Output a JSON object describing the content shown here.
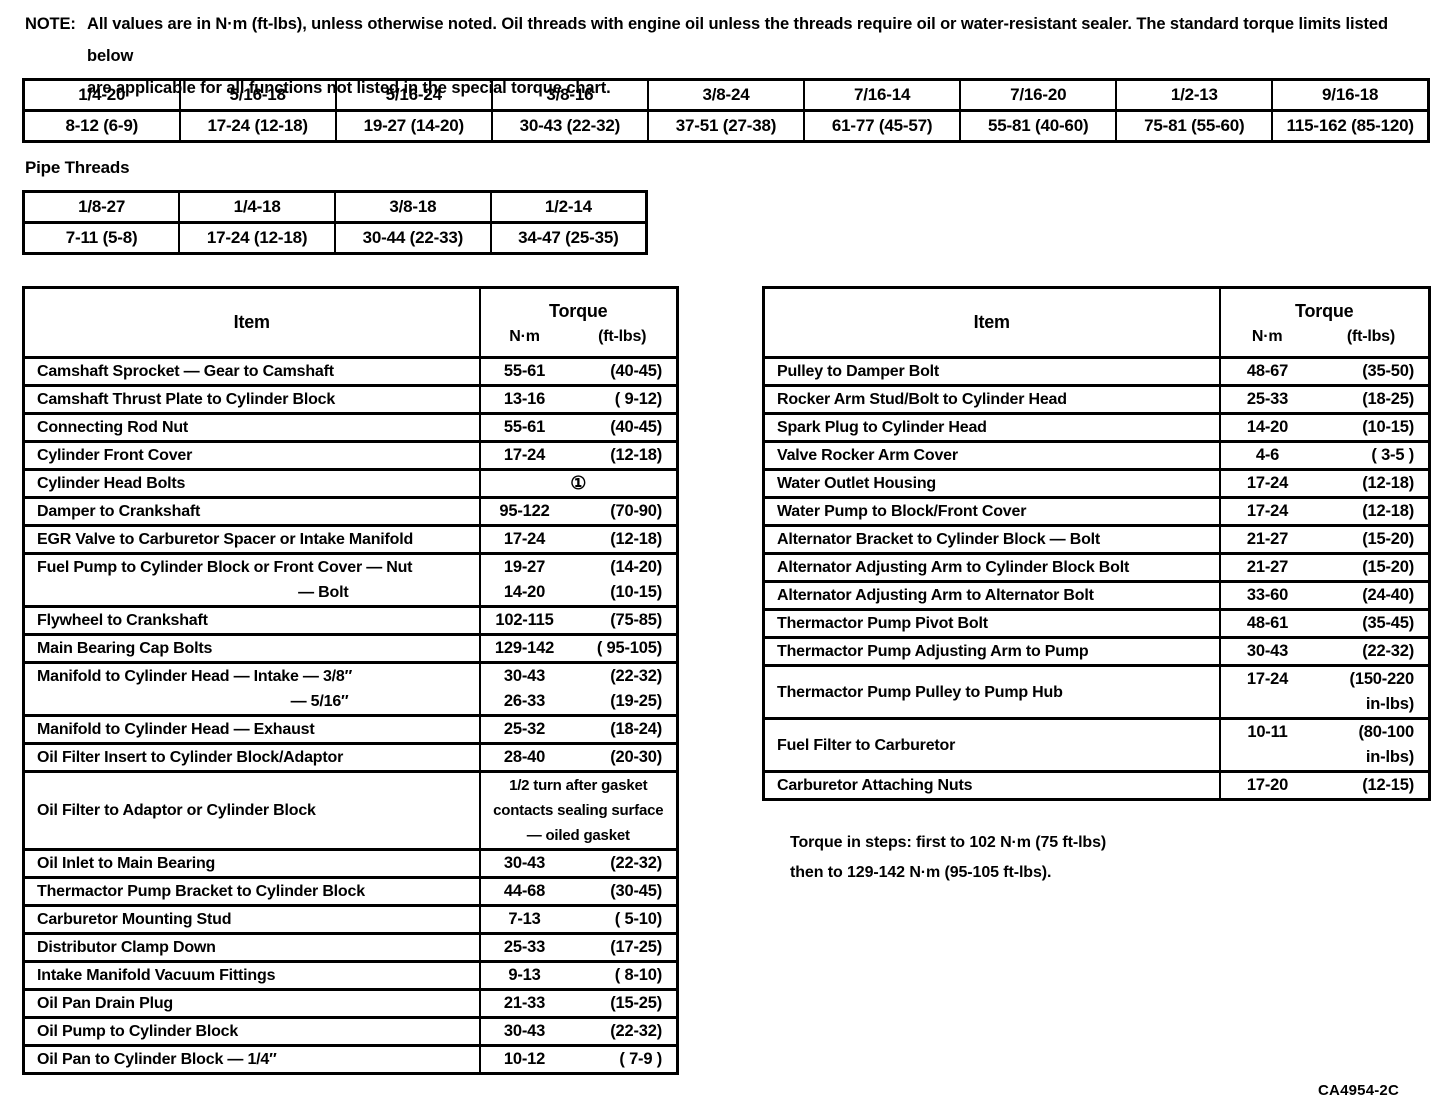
{
  "note": {
    "label": "NOTE:",
    "text_line1": "All values are in N·m (ft-lbs), unless otherwise noted. Oil threads with engine oil unless the threads require oil or water-resistant sealer. The standard torque limits listed below",
    "text_line2": "are applicable for all functions not listed in the special torque chart."
  },
  "standard_table": {
    "threads": [
      "1/4-20",
      "5/16-18",
      "5/16-24",
      "3/8-16",
      "3/8-24",
      "7/16-14",
      "7/16-20",
      "1/2-13",
      "9/16-18"
    ],
    "torques": [
      "8-12 (6-9)",
      "17-24 (12-18)",
      "19-27 (14-20)",
      "30-43 (22-32)",
      "37-51 (27-38)",
      "61-77 (45-57)",
      "55-81 (40-60)",
      "75-81 (55-60)",
      "115-162 (85-120)"
    ]
  },
  "pipe_threads": {
    "title": "Pipe Threads",
    "threads": [
      "1/8-27",
      "1/4-18",
      "3/8-18",
      "1/2-14"
    ],
    "torques": [
      "7-11 (5-8)",
      "17-24 (12-18)",
      "30-44 (22-33)",
      "34-47 (25-35)"
    ]
  },
  "left_table": {
    "item_header": "Item",
    "torque_header": "Torque",
    "nm_header": "N·m",
    "ftlbs_header": "(ft-lbs)",
    "rows": [
      {
        "item": [
          "Camshaft Sprocket — Gear to Camshaft"
        ],
        "nm": [
          "55-61"
        ],
        "ftlbs": [
          "(40-45)"
        ]
      },
      {
        "item": [
          "Camshaft Thrust Plate to Cylinder Block"
        ],
        "nm": [
          "13-16"
        ],
        "ftlbs": [
          "( 9-12)"
        ]
      },
      {
        "item": [
          "Connecting Rod Nut"
        ],
        "nm": [
          "55-61"
        ],
        "ftlbs": [
          "(40-45)"
        ]
      },
      {
        "item": [
          "Cylinder Front Cover"
        ],
        "nm": [
          "17-24"
        ],
        "ftlbs": [
          "(12-18)"
        ]
      },
      {
        "item": [
          "Cylinder Head Bolts"
        ],
        "span": [
          "①"
        ]
      },
      {
        "item": [
          "Damper to Crankshaft"
        ],
        "nm": [
          "95-122"
        ],
        "ftlbs": [
          "(70-90)"
        ]
      },
      {
        "item": [
          "EGR Valve to Carburetor Spacer or Intake Manifold"
        ],
        "nm": [
          "17-24"
        ],
        "ftlbs": [
          "(12-18)"
        ]
      },
      {
        "item": [
          "Fuel Pump to Cylinder Block or Front Cover — Nut",
          "— Bolt"
        ],
        "nm": [
          "19-27",
          "14-20"
        ],
        "ftlbs": [
          "(14-20)",
          "(10-15)"
        ]
      },
      {
        "item": [
          "Flywheel to Crankshaft"
        ],
        "nm": [
          "102-115"
        ],
        "ftlbs": [
          "(75-85)"
        ]
      },
      {
        "item": [
          "Main Bearing Cap Bolts"
        ],
        "nm": [
          "129-142"
        ],
        "ftlbs": [
          "( 95-105)"
        ]
      },
      {
        "item": [
          "Manifold to Cylinder Head — Intake — 3/8″",
          "— 5/16″"
        ],
        "nm": [
          "30-43",
          "26-33"
        ],
        "ftlbs": [
          "(22-32)",
          "(19-25)"
        ]
      },
      {
        "item": [
          "Manifold to Cylinder Head — Exhaust"
        ],
        "nm": [
          "25-32"
        ],
        "ftlbs": [
          "(18-24)"
        ]
      },
      {
        "item": [
          "Oil Filter Insert to Cylinder Block/Adaptor"
        ],
        "nm": [
          "28-40"
        ],
        "ftlbs": [
          "(20-30)"
        ]
      },
      {
        "item": [
          "Oil Filter to Adaptor or Cylinder Block"
        ],
        "span": [
          "1/2 turn after gasket",
          "contacts sealing surface",
          "— oiled gasket"
        ]
      },
      {
        "item": [
          "Oil Inlet to Main Bearing"
        ],
        "nm": [
          "30-43"
        ],
        "ftlbs": [
          "(22-32)"
        ]
      },
      {
        "item": [
          "Thermactor Pump Bracket to Cylinder Block"
        ],
        "nm": [
          "44-68"
        ],
        "ftlbs": [
          "(30-45)"
        ]
      },
      {
        "item": [
          "Carburetor Mounting Stud"
        ],
        "nm": [
          "7-13"
        ],
        "ftlbs": [
          "( 5-10)"
        ]
      },
      {
        "item": [
          "Distributor Clamp Down"
        ],
        "nm": [
          "25-33"
        ],
        "ftlbs": [
          "(17-25)"
        ]
      },
      {
        "item": [
          "Intake Manifold Vacuum Fittings"
        ],
        "nm": [
          "9-13"
        ],
        "ftlbs": [
          "( 8-10)"
        ]
      },
      {
        "item": [
          "Oil Pan Drain Plug"
        ],
        "nm": [
          "21-33"
        ],
        "ftlbs": [
          "(15-25)"
        ]
      },
      {
        "item": [
          "Oil Pump to Cylinder Block"
        ],
        "nm": [
          "30-43"
        ],
        "ftlbs": [
          "(22-32)"
        ]
      },
      {
        "item": [
          "Oil Pan to Cylinder Block — 1/4″"
        ],
        "nm": [
          "10-12"
        ],
        "ftlbs": [
          "( 7-9 )"
        ]
      }
    ]
  },
  "right_table": {
    "item_header": "Item",
    "torque_header": "Torque",
    "nm_header": "N·m",
    "ftlbs_header": "(ft-lbs)",
    "rows": [
      {
        "item": [
          "Pulley to Damper Bolt"
        ],
        "nm": [
          "48-67"
        ],
        "ftlbs": [
          "(35-50)"
        ]
      },
      {
        "item": [
          "Rocker Arm Stud/Bolt to Cylinder Head"
        ],
        "nm": [
          "25-33"
        ],
        "ftlbs": [
          "(18-25)"
        ]
      },
      {
        "item": [
          "Spark Plug to Cylinder Head"
        ],
        "nm": [
          "14-20"
        ],
        "ftlbs": [
          "(10-15)"
        ]
      },
      {
        "item": [
          "Valve Rocker Arm Cover"
        ],
        "nm": [
          "4-6"
        ],
        "ftlbs": [
          "( 3-5 )"
        ]
      },
      {
        "item": [
          "Water Outlet Housing"
        ],
        "nm": [
          "17-24"
        ],
        "ftlbs": [
          "(12-18)"
        ]
      },
      {
        "item": [
          "Water Pump to Block/Front Cover"
        ],
        "nm": [
          "17-24"
        ],
        "ftlbs": [
          "(12-18)"
        ]
      },
      {
        "item": [
          "Alternator Bracket to Cylinder Block — Bolt"
        ],
        "nm": [
          "21-27"
        ],
        "ftlbs": [
          "(15-20)"
        ]
      },
      {
        "item": [
          "Alternator Adjusting Arm to Cylinder Block Bolt"
        ],
        "nm": [
          "21-27"
        ],
        "ftlbs": [
          "(15-20)"
        ]
      },
      {
        "item": [
          "Alternator Adjusting Arm to Alternator Bolt"
        ],
        "nm": [
          "33-60"
        ],
        "ftlbs": [
          "(24-40)"
        ]
      },
      {
        "item": [
          "Thermactor Pump Pivot Bolt"
        ],
        "nm": [
          "48-61"
        ],
        "ftlbs": [
          "(35-45)"
        ]
      },
      {
        "item": [
          "Thermactor Pump Adjusting Arm to Pump"
        ],
        "nm": [
          "30-43"
        ],
        "ftlbs": [
          "(22-32)"
        ]
      },
      {
        "item": [
          "Thermactor Pump Pulley to Pump Hub"
        ],
        "nm": [
          "17-24"
        ],
        "ftlbs": [
          "(150-220",
          "in-lbs)"
        ]
      },
      {
        "item": [
          "Fuel Filter to Carburetor"
        ],
        "nm": [
          "10-11"
        ],
        "ftlbs": [
          "(80-100",
          "in-lbs)"
        ]
      },
      {
        "item": [
          "Carburetor Attaching Nuts"
        ],
        "nm": [
          "17-20"
        ],
        "ftlbs": [
          "(12-15)"
        ]
      }
    ]
  },
  "footnote": {
    "line1": "Torque in steps: first to 102 N·m (75 ft-lbs)",
    "line2": "then to 129-142 N·m (95-105 ft-lbs)."
  },
  "figure_code": "CA4954-2C"
}
